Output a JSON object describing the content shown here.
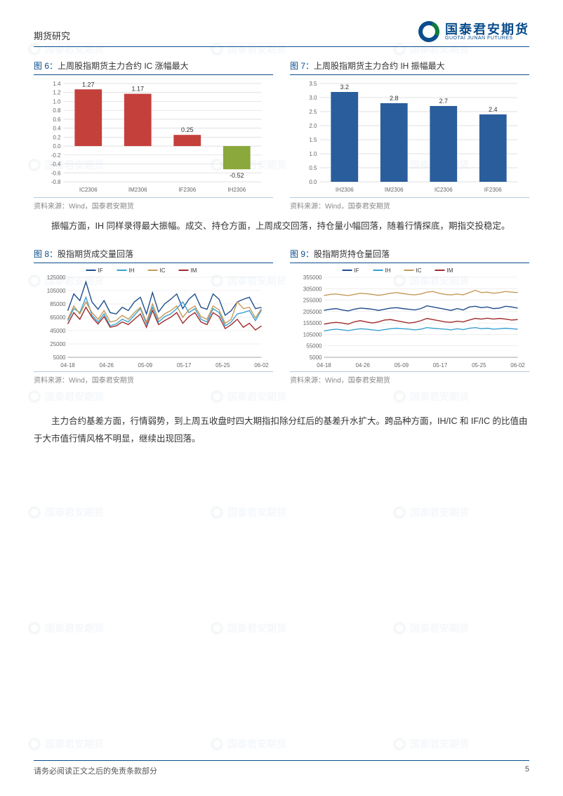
{
  "header": {
    "section": "期货研究",
    "brand_cn": "国泰君安期货",
    "brand_en": "GUOTAI JUNAN FUTURES"
  },
  "accent_color": "#0a4d8c",
  "chart6": {
    "title_prefix": "图 6：",
    "title": "上周股指期货主力合约 IC 涨幅最大",
    "type": "bar",
    "categories": [
      "IC2306",
      "IM2306",
      "IF2306",
      "IH2306"
    ],
    "values": [
      1.27,
      1.17,
      0.25,
      -0.52
    ],
    "colors": [
      "#c4403b",
      "#c4403b",
      "#c4403b",
      "#8aa83b"
    ],
    "ylim": [
      -0.8,
      1.4
    ],
    "ytick_step": 0.2,
    "grid_color": "#d8d8d8",
    "source": "资料来源：Wind，国泰君安期货"
  },
  "chart7": {
    "title_prefix": "图 7：",
    "title": "上周股指期货主力合约 IH 振幅最大",
    "type": "bar",
    "categories": [
      "IH2306",
      "IM2306",
      "IC2306",
      "IF2306"
    ],
    "values": [
      3.2,
      2.8,
      2.7,
      2.4
    ],
    "colors": [
      "#2a5d9c",
      "#2a5d9c",
      "#2a5d9c",
      "#2a5d9c"
    ],
    "ylim": [
      0,
      3.5
    ],
    "ytick_step": 0.5,
    "grid_color": "#d8d8d8",
    "source": "资料来源：Wind，国泰君安期货"
  },
  "para1": "振幅方面，IH 同样录得最大振幅。成交、持仓方面，上周成交回落，持仓量小幅回落，随着行情探底，期指交投稳定。",
  "chart8": {
    "title_prefix": "图 8：",
    "title": "股指期货成交量回落",
    "type": "line",
    "legend": [
      "IF",
      "IH",
      "IC",
      "IM"
    ],
    "legend_colors": [
      "#1f4e8c",
      "#3aa0d1",
      "#c59a5a",
      "#a02c2c"
    ],
    "ylim": [
      5000,
      125000
    ],
    "ytick_step": 20000,
    "x_labels": [
      "04-18",
      "04-26",
      "05-09",
      "05-17",
      "05-25",
      "06-02"
    ],
    "grid_color": "#e5e5e5",
    "series": {
      "IF": [
        75000,
        100000,
        90000,
        118000,
        88000,
        77000,
        90000,
        72000,
        70000,
        80000,
        75000,
        88000,
        95000,
        70000,
        102000,
        73000,
        85000,
        92000,
        100000,
        78000,
        92000,
        100000,
        80000,
        77000,
        100000,
        92000,
        68000,
        75000,
        88000,
        92000,
        95000,
        78000,
        80000
      ],
      "IH": [
        60000,
        78000,
        72000,
        95000,
        68000,
        58000,
        70000,
        52000,
        55000,
        62000,
        58000,
        68000,
        78000,
        55000,
        80000,
        58000,
        66000,
        70000,
        78000,
        88000,
        72000,
        78000,
        62000,
        58000,
        78000,
        72000,
        52000,
        58000,
        70000,
        72000,
        75000,
        60000,
        76000
      ],
      "IC": [
        62000,
        82000,
        70000,
        88000,
        72000,
        62000,
        75000,
        58000,
        60000,
        68000,
        62000,
        72000,
        80000,
        58000,
        85000,
        62000,
        70000,
        75000,
        82000,
        65000,
        76000,
        82000,
        66000,
        62000,
        82000,
        76000,
        56000,
        62000,
        88000,
        78000,
        80000,
        64000,
        78000
      ],
      "IM": [
        55000,
        72000,
        62000,
        80000,
        65000,
        55000,
        66000,
        50000,
        52000,
        58000,
        54000,
        62000,
        70000,
        50000,
        75000,
        54000,
        60000,
        65000,
        72000,
        56000,
        66000,
        72000,
        58000,
        54000,
        72000,
        66000,
        48000,
        54000,
        62000,
        50000,
        56000,
        46000,
        52000
      ]
    },
    "source": "资料来源：Wind，国泰君安期货"
  },
  "chart9": {
    "title_prefix": "图 9：",
    "title": "股指期货持仓量回落",
    "type": "line",
    "legend": [
      "IF",
      "IH",
      "IC",
      "IM"
    ],
    "legend_colors": [
      "#1f4e8c",
      "#3aa0d1",
      "#c59a5a",
      "#a02c2c"
    ],
    "ylim": [
      5000,
      355000
    ],
    "ytick_step": 50000,
    "x_labels": [
      "04-18",
      "04-26",
      "05-09",
      "05-17",
      "05-25",
      "06-02"
    ],
    "grid_color": "#e5e5e5",
    "series": {
      "IF": [
        210000,
        215000,
        218000,
        212000,
        208000,
        215000,
        220000,
        218000,
        215000,
        210000,
        215000,
        220000,
        222000,
        218000,
        215000,
        212000,
        218000,
        230000,
        225000,
        220000,
        215000,
        210000,
        218000,
        212000,
        225000,
        228000,
        222000,
        225000,
        218000,
        220000,
        228000,
        225000,
        220000
      ],
      "IH": [
        120000,
        125000,
        128000,
        125000,
        122000,
        126000,
        130000,
        128000,
        125000,
        122000,
        126000,
        130000,
        132000,
        130000,
        128000,
        125000,
        128000,
        135000,
        132000,
        130000,
        128000,
        125000,
        130000,
        126000,
        132000,
        135000,
        130000,
        132000,
        128000,
        130000,
        132000,
        130000,
        128000
      ],
      "IC": [
        275000,
        280000,
        282000,
        278000,
        275000,
        280000,
        285000,
        283000,
        280000,
        276000,
        280000,
        285000,
        288000,
        284000,
        280000,
        278000,
        282000,
        290000,
        293000,
        285000,
        280000,
        278000,
        282000,
        278000,
        288000,
        298000,
        288000,
        290000,
        285000,
        288000,
        293000,
        290000,
        288000
      ],
      "IM": [
        150000,
        155000,
        158000,
        155000,
        150000,
        160000,
        165000,
        160000,
        155000,
        160000,
        168000,
        170000,
        165000,
        160000,
        155000,
        158000,
        165000,
        175000,
        170000,
        165000,
        160000,
        158000,
        163000,
        160000,
        168000,
        175000,
        172000,
        176000,
        172000,
        175000,
        172000,
        168000,
        170000
      ]
    },
    "source": "资料来源：Wind，国泰君安期货"
  },
  "para2": "主力合约基差方面，行情弱势，到上周五收盘时四大期指扣除分红后的基差升水扩大。跨品种方面，IH/IC 和 IF/IC 的比值由于大市值行情风格不明显，继续出现回落。",
  "footer": {
    "disclaimer": "请务必阅读正文之后的免责条款部分",
    "page": "5"
  }
}
